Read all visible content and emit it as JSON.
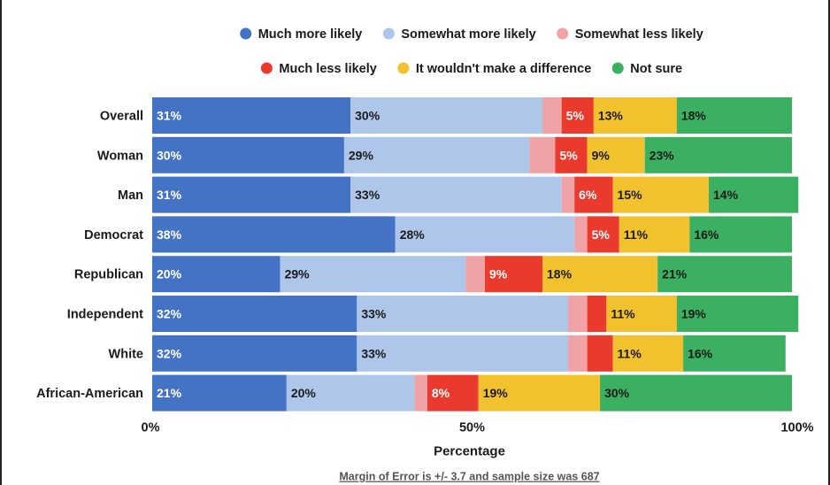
{
  "chart_data": {
    "type": "bar",
    "orientation": "horizontal",
    "stacked": true,
    "categories": [
      "Overall",
      "Woman",
      "Man",
      "Democrat",
      "Republican",
      "Independent",
      "White",
      "African-American"
    ],
    "series": [
      {
        "name": "Much more likely",
        "color": "#4472c4",
        "label_color": "#ffffff",
        "values": [
          31,
          30,
          31,
          38,
          20,
          32,
          32,
          21
        ],
        "labels": [
          "31%",
          "30%",
          "31%",
          "38%",
          "20%",
          "32%",
          "32%",
          "21%"
        ]
      },
      {
        "name": "Somewhat more likely",
        "color": "#adc6ea",
        "label_color": "#1a1a1a",
        "values": [
          30,
          29,
          33,
          28,
          29,
          33,
          33,
          20
        ],
        "labels": [
          "30%",
          "29%",
          "33%",
          "28%",
          "29%",
          "33%",
          "33%",
          "20%"
        ]
      },
      {
        "name": "Somewhat less likely",
        "color": "#f0a3a6",
        "label_color": "#1a1a1a",
        "values": [
          3,
          4,
          2,
          2,
          3,
          3,
          3,
          2
        ],
        "labels": [
          "",
          "",
          "",
          "",
          "",
          "",
          "",
          ""
        ]
      },
      {
        "name": "Much less likely",
        "color": "#ea3a2e",
        "label_color": "#ffffff",
        "values": [
          5,
          5,
          6,
          5,
          9,
          3,
          4,
          8
        ],
        "labels": [
          "5%",
          "5%",
          "6%",
          "5%",
          "9%",
          "",
          "",
          "8%"
        ]
      },
      {
        "name": "It wouldn't make a difference",
        "color": "#f2c12e",
        "label_color": "#1a1a1a",
        "values": [
          13,
          9,
          15,
          11,
          18,
          11,
          11,
          19
        ],
        "labels": [
          "13%",
          "9%",
          "15%",
          "11%",
          "18%",
          "11%",
          "11%",
          "19%"
        ]
      },
      {
        "name": "Not sure",
        "color": "#3bb061",
        "label_color": "#1a1a1a",
        "values": [
          18,
          23,
          14,
          16,
          21,
          19,
          16,
          30
        ],
        "labels": [
          "18%",
          "23%",
          "14%",
          "16%",
          "21%",
          "19%",
          "16%",
          "30%"
        ]
      }
    ],
    "x_ticks": [
      "0%",
      "50%",
      "100%"
    ],
    "xlim": [
      0,
      100
    ],
    "xlabel": "Percentage",
    "ylabel": "",
    "legend_position": "top",
    "grid": false,
    "note": "Margin of Error is +/- 3.7 and sample size was 687"
  }
}
